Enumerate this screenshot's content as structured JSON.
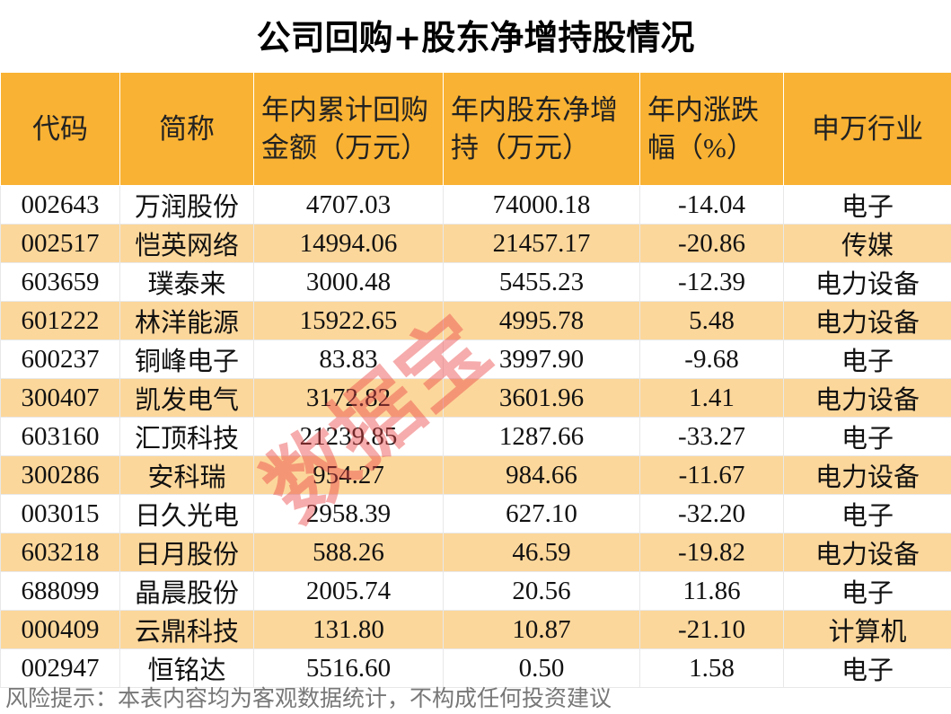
{
  "title": "公司回购+股东净增持股情况",
  "table": {
    "header": [
      "代码",
      "简称",
      "年内累计回购金额（万元）",
      "年内股东净增持（万元）",
      "年内涨跌幅（%）",
      "申万行业"
    ],
    "rows": [
      [
        "002643",
        "万润股份",
        "4707.03",
        "74000.18",
        "-14.04",
        "电子"
      ],
      [
        "002517",
        "恺英网络",
        "14994.06",
        "21457.17",
        "-20.86",
        "传媒"
      ],
      [
        "603659",
        "璞泰来",
        "3000.48",
        "5455.23",
        "-12.39",
        "电力设备"
      ],
      [
        "601222",
        "林洋能源",
        "15922.65",
        "4995.78",
        "5.48",
        "电力设备"
      ],
      [
        "600237",
        "铜峰电子",
        "83.83",
        "3997.90",
        "-9.68",
        "电子"
      ],
      [
        "300407",
        "凯发电气",
        "3172.82",
        "3601.96",
        "1.41",
        "电力设备"
      ],
      [
        "603160",
        "汇顶科技",
        "21239.85",
        "1287.66",
        "-33.27",
        "电子"
      ],
      [
        "300286",
        "安科瑞",
        "954.27",
        "984.66",
        "-11.67",
        "电力设备"
      ],
      [
        "003015",
        "日久光电",
        "2958.39",
        "627.10",
        "-32.20",
        "电子"
      ],
      [
        "603218",
        "日月股份",
        "588.26",
        "46.59",
        "-19.82",
        "电力设备"
      ],
      [
        "688099",
        "晶晨股份",
        "2005.74",
        "20.56",
        "11.86",
        "电子"
      ],
      [
        "000409",
        "云鼎科技",
        "131.80",
        "10.87",
        "-21.10",
        "计算机"
      ],
      [
        "002947",
        "恒铭达",
        "5516.60",
        "0.50",
        "1.58",
        "电子"
      ]
    ]
  },
  "watermark": "数据宝",
  "footer": "风险提示：本表内容均为客观数据统计，不构成任何投资建议"
}
